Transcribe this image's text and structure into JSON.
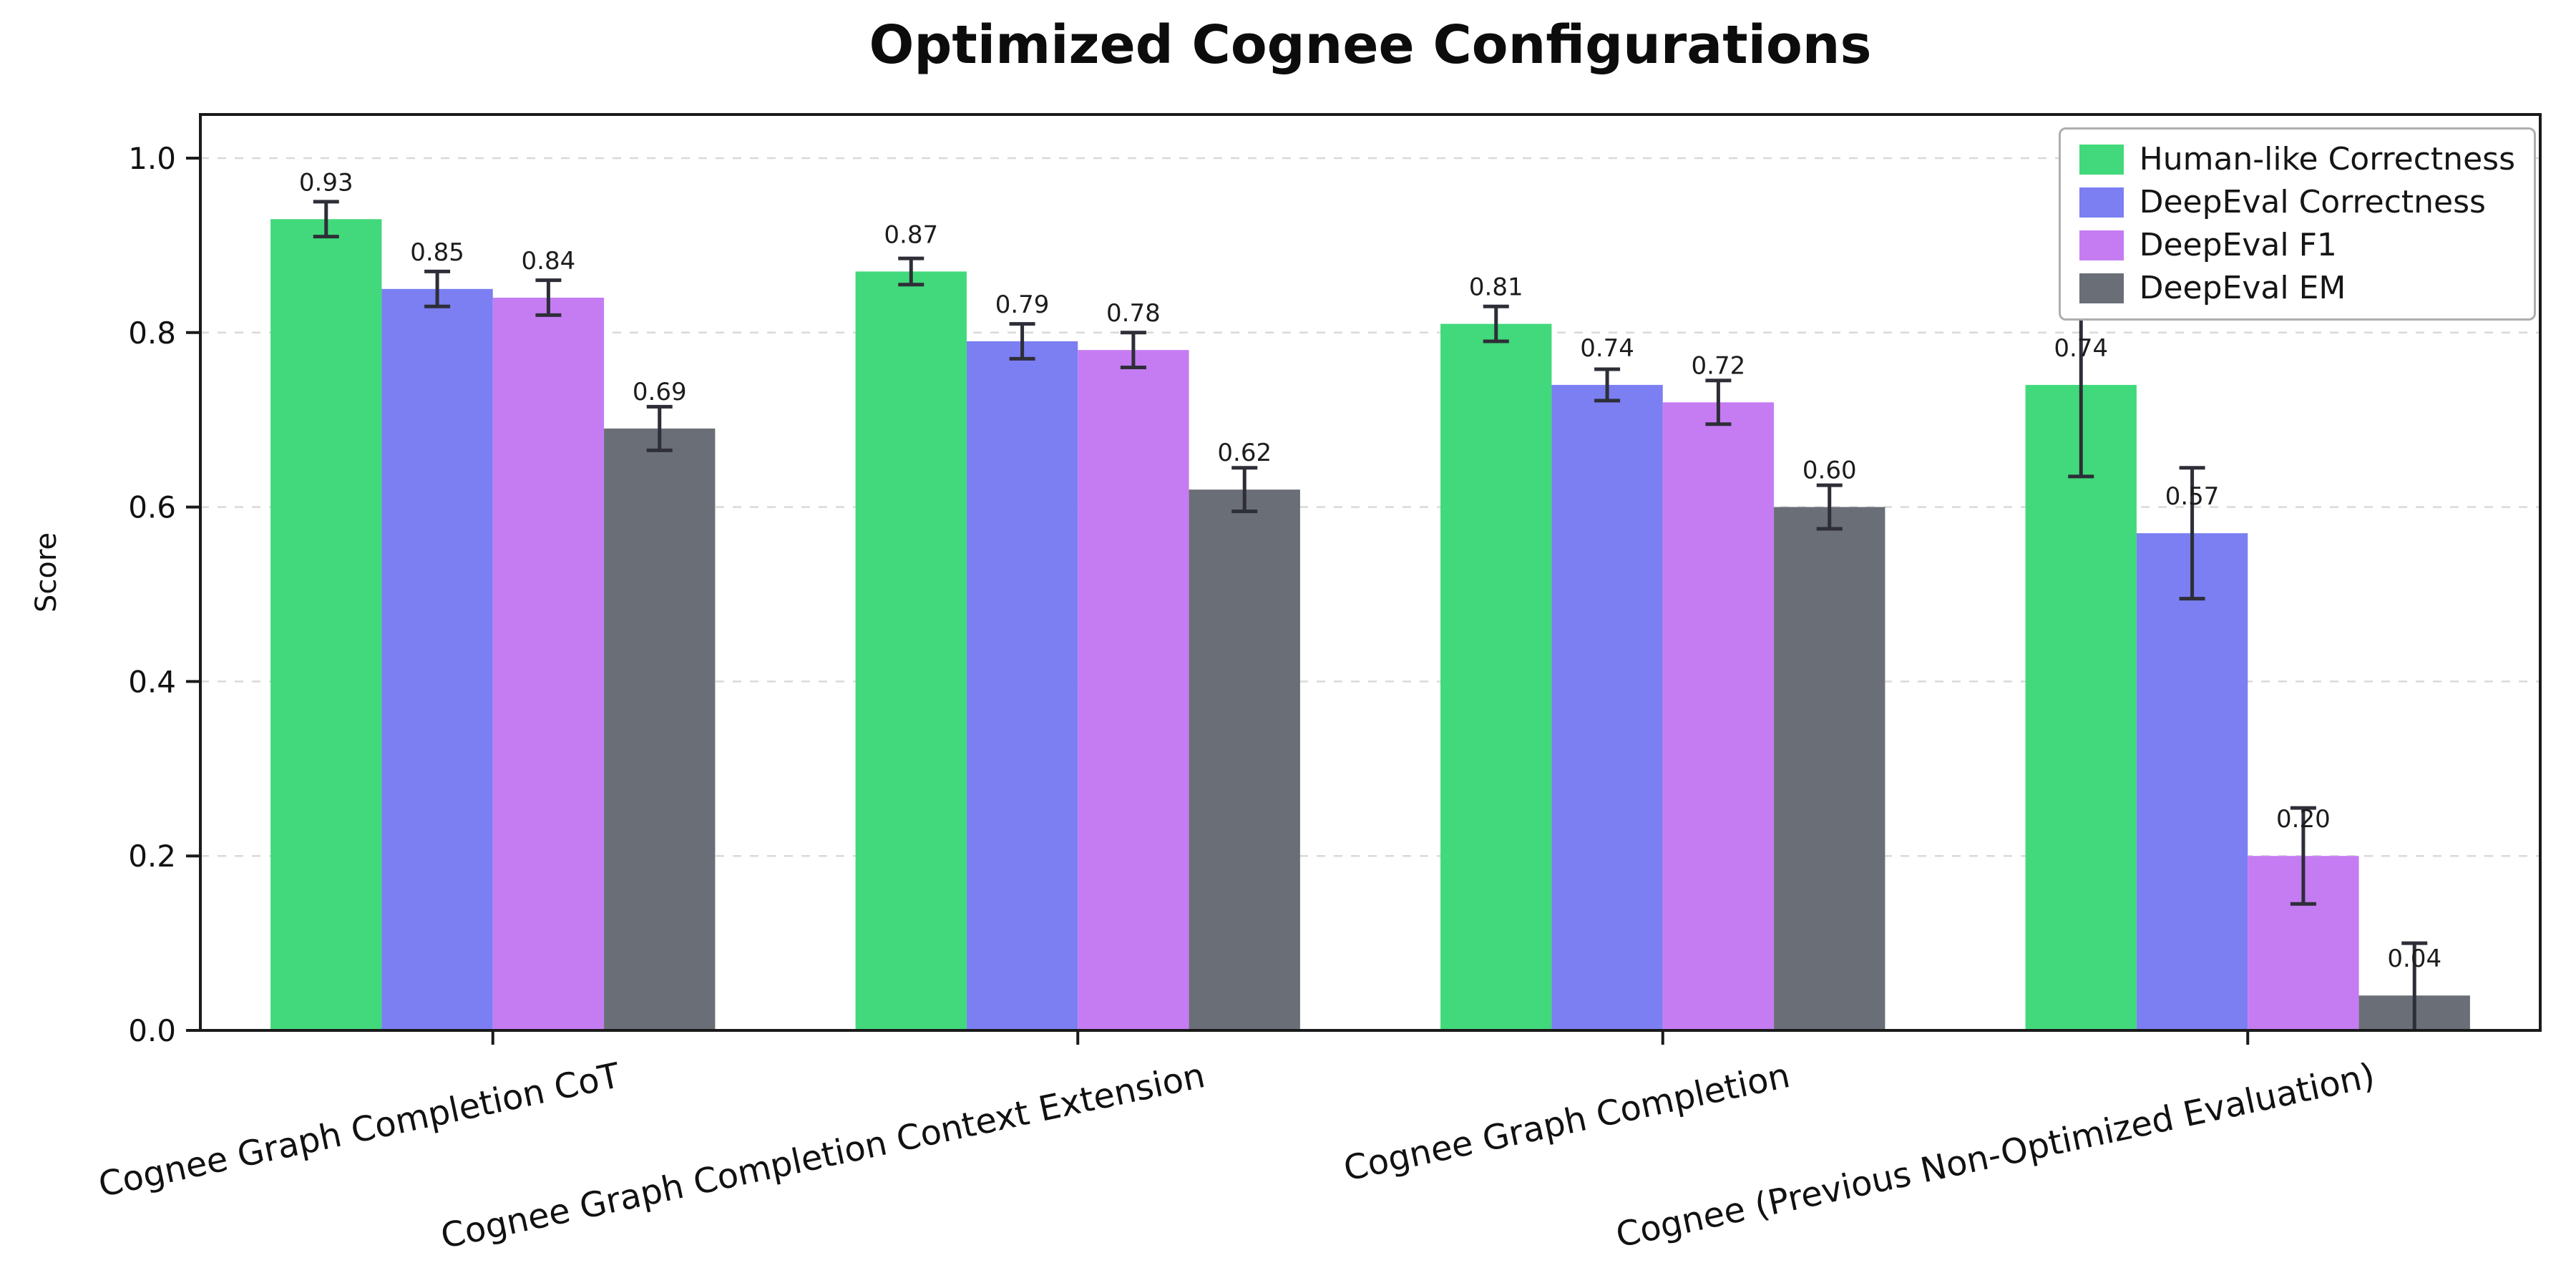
{
  "chart_data": {
    "type": "bar",
    "title": "Optimized Cognee Configurations",
    "ylabel": "Score",
    "xlabel": "",
    "ylim": [
      0,
      1.05
    ],
    "yticks": [
      0.0,
      0.2,
      0.4,
      0.6,
      0.8,
      1.0
    ],
    "grid": "horizontal-dashed",
    "legend_position": "upper-right",
    "background": "#ffffff",
    "error_bar_color": "#2e2e38",
    "bar_label_format": "0.00",
    "categories": [
      "Cognee Graph Completion CoT",
      "Cognee Graph Completion Context Extension",
      "Cognee Graph Completion",
      "Cognee (Previous Non-Optimized Evaluation)"
    ],
    "series": [
      {
        "name": "Human-like Correctness",
        "color": "#41d97b",
        "values": [
          0.93,
          0.87,
          0.81,
          0.74
        ],
        "errors": [
          0.02,
          0.015,
          0.02,
          0.105
        ]
      },
      {
        "name": "DeepEval Correctness",
        "color": "#7b7ff2",
        "values": [
          0.85,
          0.79,
          0.74,
          0.57
        ],
        "errors": [
          0.02,
          0.02,
          0.018,
          0.075
        ]
      },
      {
        "name": "DeepEval F1",
        "color": "#c57cf2",
        "values": [
          0.84,
          0.78,
          0.72,
          0.2
        ],
        "errors": [
          0.02,
          0.02,
          0.025,
          0.055
        ]
      },
      {
        "name": "DeepEval EM",
        "color": "#6a6e77",
        "values": [
          0.69,
          0.62,
          0.6,
          0.04
        ],
        "errors": [
          0.025,
          0.025,
          0.025,
          0.06
        ]
      }
    ]
  }
}
